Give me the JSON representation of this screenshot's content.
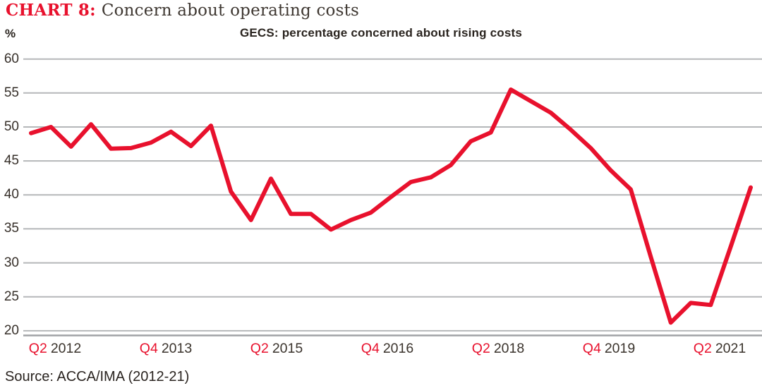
{
  "title": {
    "tag": "CHART 8:",
    "text": "Concern about operating costs"
  },
  "subtitle": "GECS: percentage concerned about rising costs",
  "y_axis_unit": "%",
  "source": "Source: ACCA/IMA (2012-21)",
  "colors": {
    "line": "#e8112d",
    "accent_red": "#e8112d",
    "grid": "#b5b7b9",
    "axis": "#a0a2a5",
    "title_dark": "#3e3731",
    "text_dark": "#29231e"
  },
  "chart_data": {
    "type": "line",
    "title": "CHART 8: Concern about operating costs",
    "subtitle": "GECS: percentage concerned about rising costs",
    "ylabel": "%",
    "xlabel": "",
    "ylim": [
      20,
      60
    ],
    "yticks": [
      60,
      55,
      50,
      45,
      40,
      35,
      30,
      25,
      20
    ],
    "grid": "horizontal",
    "legend_position": "none",
    "x": [
      "Q2 2012",
      "Q3 2012",
      "Q4 2012",
      "Q1 2013",
      "Q2 2013",
      "Q3 2013",
      "Q4 2013",
      "Q1 2014",
      "Q2 2014",
      "Q3 2014",
      "Q4 2014",
      "Q1 2015",
      "Q2 2015",
      "Q3 2015",
      "Q4 2015",
      "Q1 2016",
      "Q2 2016",
      "Q3 2016",
      "Q4 2016",
      "Q1 2017",
      "Q2 2017",
      "Q3 2017",
      "Q4 2017",
      "Q1 2018",
      "Q2 2018",
      "Q3 2018",
      "Q4 2018",
      "Q1 2019",
      "Q2 2019",
      "Q3 2019",
      "Q4 2019",
      "Q1 2020",
      "Q2 2020",
      "Q3 2020",
      "Q4 2020",
      "Q1 2021",
      "Q2 2021"
    ],
    "values": [
      49.1,
      50.0,
      47.1,
      50.4,
      46.8,
      46.9,
      47.7,
      49.3,
      47.2,
      50.2,
      40.5,
      36.3,
      42.4,
      37.2,
      37.2,
      34.9,
      36.3,
      37.4,
      39.7,
      41.9,
      42.6,
      44.4,
      47.9,
      49.2,
      55.5,
      53.8,
      52.1,
      49.6,
      46.9,
      43.6,
      40.8,
      30.9,
      21.2,
      24.1,
      23.8,
      32.4,
      41.1
    ],
    "xtick_labels": [
      {
        "q": "Q2",
        "year": "2012"
      },
      {
        "q": "Q4",
        "year": "2013"
      },
      {
        "q": "Q2",
        "year": "2015"
      },
      {
        "q": "Q4",
        "year": "2016"
      },
      {
        "q": "Q2",
        "year": "2018"
      },
      {
        "q": "Q4",
        "year": "2019"
      },
      {
        "q": "Q2",
        "year": "2021"
      }
    ]
  }
}
